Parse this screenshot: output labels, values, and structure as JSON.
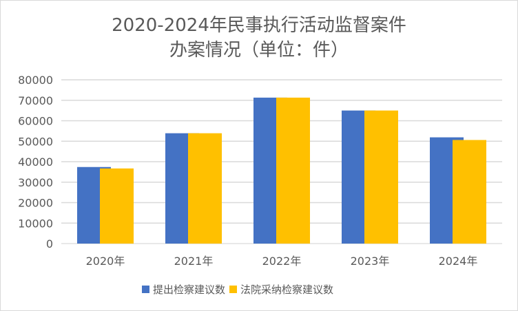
{
  "chart_data": {
    "type": "bar",
    "title": [
      "2020-2024年民事执行活动监督案件",
      "办案情况（单位：件）"
    ],
    "categories": [
      "2020年",
      "2021年",
      "2022年",
      "2023年",
      "2024年"
    ],
    "series": [
      {
        "name": "提出检察建议数",
        "color": "#4472C4",
        "values": [
          37400,
          53900,
          71300,
          65000,
          51900
        ]
      },
      {
        "name": "法院采纳检察建议数",
        "color": "#FFC000",
        "values": [
          36700,
          53900,
          71300,
          65000,
          50600
        ]
      }
    ],
    "ylim": [
      0,
      80000
    ],
    "yticks": [
      "0",
      "10000",
      "20000",
      "30000",
      "40000",
      "50000",
      "60000",
      "70000",
      "80000"
    ],
    "grid": true,
    "legend": "bottom"
  }
}
